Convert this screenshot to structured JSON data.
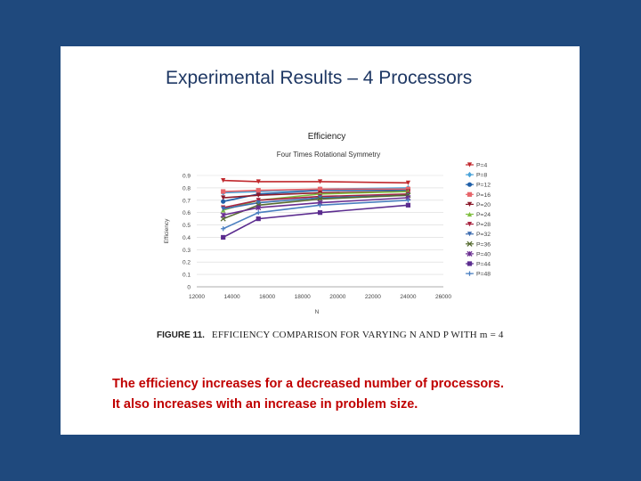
{
  "slide": {
    "title": "Experimental Results – 4 Processors",
    "body_lines": [
      "The efficiency increases for a decreased number of processors.",
      "It also increases with an increase in problem size."
    ]
  },
  "figure": {
    "label": "FIGURE 11.",
    "caption": "EFFICIENCY COMPARISON FOR VARYING N AND P WITH m = 4"
  },
  "chart_data": {
    "type": "line",
    "title": "Efficiency",
    "subtitle": "Four Times Rotational Symmetry",
    "xlabel": "N",
    "ylabel": "Efficiency",
    "xlim": [
      12000,
      26000
    ],
    "ylim": [
      0,
      0.9
    ],
    "x_ticks": [
      "12000",
      "14000",
      "16000",
      "18000",
      "20000",
      "22000",
      "24000",
      "26000"
    ],
    "y_ticks": [
      "0",
      "0.1",
      "0.2",
      "0.3",
      "0.4",
      "0.5",
      "0.6",
      "0.7",
      "0.8",
      "0.9"
    ],
    "x": [
      13500,
      15500,
      19000,
      24000
    ],
    "legend_position": "right",
    "series": [
      {
        "name": "P=4",
        "color": "#c0282d",
        "values": [
          0.86,
          0.85,
          0.85,
          0.84
        ]
      },
      {
        "name": "P=8",
        "color": "#4aa3d8",
        "values": [
          0.76,
          0.77,
          0.79,
          0.8
        ]
      },
      {
        "name": "P=12",
        "color": "#1f5fa8",
        "values": [
          0.69,
          0.75,
          0.78,
          0.78
        ]
      },
      {
        "name": "P=16",
        "color": "#e7656a",
        "values": [
          0.77,
          0.78,
          0.79,
          0.79
        ]
      },
      {
        "name": "P=20",
        "color": "#8b1a2b",
        "values": [
          0.72,
          0.74,
          0.76,
          0.77
        ]
      },
      {
        "name": "P=24",
        "color": "#7fbf3f",
        "values": [
          0.62,
          0.7,
          0.75,
          0.77
        ]
      },
      {
        "name": "P=28",
        "color": "#a8233f",
        "values": [
          0.64,
          0.7,
          0.73,
          0.75
        ]
      },
      {
        "name": "P=32",
        "color": "#3e6db0",
        "values": [
          0.63,
          0.68,
          0.72,
          0.74
        ]
      },
      {
        "name": "P=36",
        "color": "#556b2f",
        "values": [
          0.55,
          0.66,
          0.71,
          0.74
        ]
      },
      {
        "name": "P=40",
        "color": "#6a2d91",
        "values": [
          0.58,
          0.64,
          0.68,
          0.72
        ]
      },
      {
        "name": "P=44",
        "color": "#5b2c8f",
        "values": [
          0.4,
          0.55,
          0.6,
          0.66
        ]
      },
      {
        "name": "P=48",
        "color": "#4a7fc0",
        "values": [
          0.47,
          0.6,
          0.66,
          0.7
        ]
      }
    ]
  }
}
